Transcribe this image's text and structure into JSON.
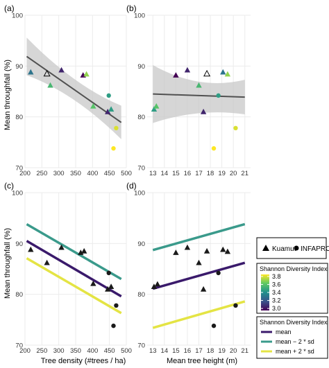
{
  "figure": {
    "ylabel": "Mean throughfall (%)",
    "xlabel_left": "Tree density (#trees / ha)",
    "xlabel_right": "Mean tree height (m)",
    "legend_shape": {
      "items": [
        {
          "label": "Kuamut",
          "shape": "triangle"
        },
        {
          "label": "INFAPRO",
          "shape": "circle"
        }
      ]
    },
    "legend_color": {
      "title": "Shannon Diversity Index",
      "ticks": [
        "3.8",
        "3.6",
        "3.4",
        "3.2",
        "3.0"
      ],
      "range": [
        2.95,
        3.85
      ]
    },
    "legend_lines": {
      "title": "Shannon Diversity Index",
      "items": [
        {
          "label": "mean",
          "color": "#3a1a6b"
        },
        {
          "label": "mean − 2 * sd",
          "color": "#3a9a8b"
        },
        {
          "label": "mean + 2 * sd",
          "color": "#e4e444"
        }
      ]
    },
    "colors": {
      "panel_bg": "#ffffff",
      "grid": "#ebebeb",
      "ci_band": "#c8c8c8",
      "fit_line": "#505050"
    }
  },
  "chart_data": [
    {
      "panel": "(a)",
      "type": "scatter",
      "xlim": [
        200,
        500
      ],
      "ylim": [
        70,
        100
      ],
      "xticks": [
        "200",
        "250",
        "300",
        "350",
        "400",
        "450",
        "500"
      ],
      "yticks": [
        "70",
        "80",
        "90",
        "100"
      ],
      "points": [
        {
          "x": 217,
          "y": 88.8,
          "sdi": 3.3,
          "shape": "triangle"
        },
        {
          "x": 265,
          "y": 88.5,
          "sdi": null,
          "shape": "triangle"
        },
        {
          "x": 275,
          "y": 86.2,
          "sdi": 3.55,
          "shape": "triangle"
        },
        {
          "x": 308,
          "y": 89.2,
          "sdi": 3.05,
          "shape": "triangle"
        },
        {
          "x": 372,
          "y": 88.2,
          "sdi": 2.95,
          "shape": "triangle"
        },
        {
          "x": 382,
          "y": 88.4,
          "sdi": 3.7,
          "shape": "triangle"
        },
        {
          "x": 402,
          "y": 82.1,
          "sdi": 3.6,
          "shape": "triangle"
        },
        {
          "x": 445,
          "y": 81.0,
          "sdi": 3.05,
          "shape": "triangle"
        },
        {
          "x": 455,
          "y": 81.5,
          "sdi": 3.45,
          "shape": "triangle"
        },
        {
          "x": 448,
          "y": 84.2,
          "sdi": 3.45,
          "shape": "circle"
        },
        {
          "x": 470,
          "y": 77.8,
          "sdi": 3.8,
          "shape": "circle"
        },
        {
          "x": 462,
          "y": 73.8,
          "sdi": 3.85,
          "shape": "circle"
        }
      ],
      "fit": {
        "x": [
          205,
          485
        ],
        "y": [
          91.9,
          78.9
        ],
        "ci_lo": [
          88.2,
          75.6
        ],
        "ci_mid": 84.8,
        "ci_hi": [
          95.6,
          82.2
        ],
        "color": "#505050"
      }
    },
    {
      "panel": "(b)",
      "type": "scatter",
      "xlim": [
        12.5,
        21.5
      ],
      "ylim": [
        70,
        100
      ],
      "xticks": [
        "13",
        "14",
        "15",
        "16",
        "17",
        "18",
        "19",
        "20",
        "21"
      ],
      "yticks": [
        "70",
        "80",
        "90",
        "100"
      ],
      "points": [
        {
          "x": 13.1,
          "y": 81.5,
          "sdi": 3.45,
          "shape": "triangle"
        },
        {
          "x": 13.3,
          "y": 82.1,
          "sdi": 3.6,
          "shape": "triangle"
        },
        {
          "x": 15.0,
          "y": 88.2,
          "sdi": 2.95,
          "shape": "triangle"
        },
        {
          "x": 16.0,
          "y": 89.2,
          "sdi": 3.05,
          "shape": "triangle"
        },
        {
          "x": 17.0,
          "y": 86.2,
          "sdi": 3.55,
          "shape": "triangle"
        },
        {
          "x": 17.4,
          "y": 81.0,
          "sdi": 3.05,
          "shape": "triangle"
        },
        {
          "x": 17.7,
          "y": 88.5,
          "sdi": null,
          "shape": "triangle"
        },
        {
          "x": 19.1,
          "y": 88.8,
          "sdi": 3.3,
          "shape": "triangle"
        },
        {
          "x": 19.5,
          "y": 88.4,
          "sdi": 3.7,
          "shape": "triangle"
        },
        {
          "x": 18.7,
          "y": 84.2,
          "sdi": 3.45,
          "shape": "circle"
        },
        {
          "x": 20.2,
          "y": 77.8,
          "sdi": 3.8,
          "shape": "circle"
        },
        {
          "x": 18.3,
          "y": 73.8,
          "sdi": 3.85,
          "shape": "circle"
        }
      ],
      "fit": {
        "x": [
          13,
          21
        ],
        "y": [
          84.5,
          83.9
        ],
        "ci_lo": [
          78.8,
          80.5
        ],
        "ci_mid": 81.8,
        "ci_hi": [
          90.2,
          87.3
        ],
        "color": "#505050"
      }
    },
    {
      "panel": "(c)",
      "type": "scatter",
      "xlim": [
        200,
        500
      ],
      "ylim": [
        70,
        100
      ],
      "xticks": [
        "200",
        "250",
        "300",
        "350",
        "400",
        "450",
        "500"
      ],
      "yticks": [
        "70",
        "80",
        "90",
        "100"
      ],
      "points": [
        {
          "x": 217,
          "y": 88.8,
          "shape": "triangle"
        },
        {
          "x": 265,
          "y": 86.2,
          "shape": "triangle"
        },
        {
          "x": 308,
          "y": 89.2,
          "shape": "triangle"
        },
        {
          "x": 365,
          "y": 88.2,
          "shape": "triangle"
        },
        {
          "x": 375,
          "y": 88.5,
          "shape": "triangle"
        },
        {
          "x": 402,
          "y": 82.1,
          "shape": "triangle"
        },
        {
          "x": 445,
          "y": 81.0,
          "shape": "triangle"
        },
        {
          "x": 455,
          "y": 81.5,
          "shape": "triangle"
        },
        {
          "x": 448,
          "y": 84.2,
          "shape": "circle"
        },
        {
          "x": 470,
          "y": 77.8,
          "shape": "circle"
        },
        {
          "x": 462,
          "y": 73.8,
          "shape": "circle"
        }
      ],
      "lines": [
        {
          "series": "mean − 2 * sd",
          "x": [
            205,
            485
          ],
          "y": [
            93.8,
            83.0
          ],
          "color": "#3a9a8b"
        },
        {
          "series": "mean",
          "x": [
            205,
            485
          ],
          "y": [
            90.5,
            79.6
          ],
          "color": "#3a1a6b"
        },
        {
          "series": "mean + 2 * sd",
          "x": [
            205,
            485
          ],
          "y": [
            87.1,
            76.3
          ],
          "color": "#e4e444"
        }
      ]
    },
    {
      "panel": "(d)",
      "type": "scatter",
      "xlim": [
        12.5,
        21.5
      ],
      "ylim": [
        70,
        100
      ],
      "xticks": [
        "13",
        "14",
        "15",
        "16",
        "17",
        "18",
        "19",
        "20",
        "21"
      ],
      "yticks": [
        "70",
        "80",
        "90",
        "100"
      ],
      "points": [
        {
          "x": 13.1,
          "y": 81.5,
          "shape": "triangle"
        },
        {
          "x": 13.4,
          "y": 82.0,
          "shape": "triangle"
        },
        {
          "x": 15.0,
          "y": 88.2,
          "shape": "triangle"
        },
        {
          "x": 16.0,
          "y": 89.2,
          "shape": "triangle"
        },
        {
          "x": 17.0,
          "y": 86.2,
          "shape": "triangle"
        },
        {
          "x": 17.4,
          "y": 81.0,
          "shape": "triangle"
        },
        {
          "x": 17.7,
          "y": 88.5,
          "shape": "triangle"
        },
        {
          "x": 19.1,
          "y": 88.8,
          "shape": "triangle"
        },
        {
          "x": 19.5,
          "y": 88.4,
          "shape": "triangle"
        },
        {
          "x": 18.7,
          "y": 84.2,
          "shape": "circle"
        },
        {
          "x": 20.2,
          "y": 77.8,
          "shape": "circle"
        },
        {
          "x": 18.3,
          "y": 73.8,
          "shape": "circle"
        }
      ],
      "lines": [
        {
          "series": "mean − 2 * sd",
          "x": [
            13,
            21
          ],
          "y": [
            88.7,
            93.8
          ],
          "color": "#3a9a8b"
        },
        {
          "series": "mean",
          "x": [
            13,
            21
          ],
          "y": [
            81.1,
            86.2
          ],
          "color": "#3a1a6b"
        },
        {
          "series": "mean + 2 * sd",
          "x": [
            13,
            21
          ],
          "y": [
            73.4,
            78.6
          ],
          "color": "#e4e444"
        }
      ]
    }
  ]
}
